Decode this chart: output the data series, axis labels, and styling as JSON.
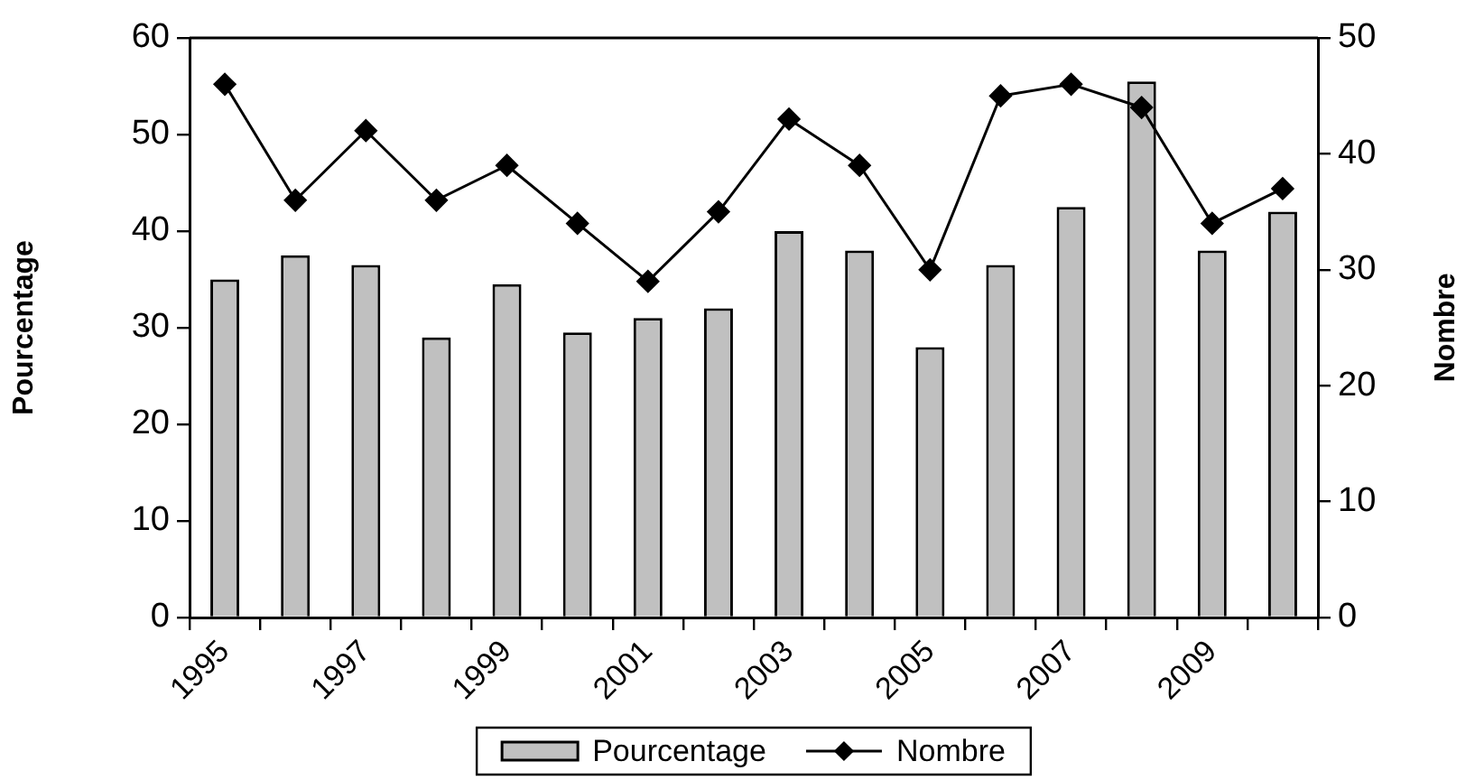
{
  "chart_data": {
    "type": "bar",
    "ylabel": "Pourcentage",
    "y2label": "Nombre",
    "categories": [
      "1995",
      null,
      "1997",
      null,
      "1999",
      null,
      "2001",
      null,
      "2003",
      null,
      "2005",
      null,
      "2007",
      null,
      "2009",
      null
    ],
    "series": [
      {
        "name": "Pourcentage",
        "color": "#c0c0c0",
        "values": [
          35,
          37.5,
          36.5,
          29,
          34.5,
          29.5,
          31,
          32,
          40,
          38,
          28,
          36.5,
          42.5,
          55.5,
          38,
          42
        ]
      },
      {
        "name": "Nombre",
        "type": "line",
        "axis": "y2",
        "color": "#000000",
        "marker": "diamond",
        "line_style": "solid",
        "values": [
          46,
          36,
          42,
          36,
          39,
          34,
          29,
          35,
          43,
          39,
          30,
          45,
          46,
          44,
          34,
          37
        ]
      }
    ],
    "ylim": [
      0,
      60
    ],
    "yticks": [
      0,
      10,
      20,
      30,
      40,
      50,
      60
    ],
    "y2lim": [
      0,
      50
    ],
    "y2ticks": [
      0,
      10,
      20,
      30,
      40,
      50
    ],
    "grid": false,
    "legend": "bottom"
  }
}
